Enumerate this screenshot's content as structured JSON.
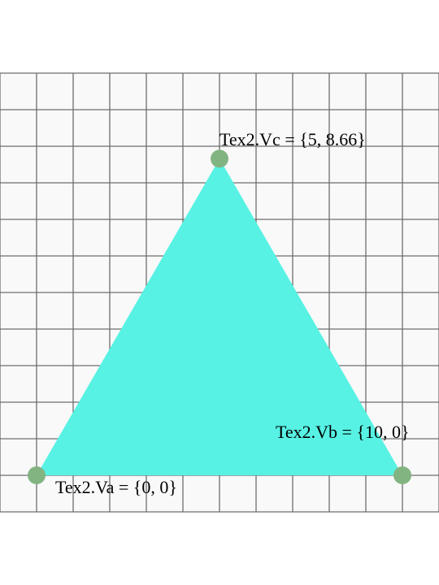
{
  "grid": {
    "background_color": "#f9f9f9",
    "line_color": "#6e6e6e"
  },
  "triangle": {
    "fill_color": "#57f2e4"
  },
  "vertex_marker_color": "#82b482",
  "vertices": {
    "a": {
      "name": "Tex2.Va",
      "x": 0,
      "y": 0,
      "label": "Tex2.Va = {0, 0}"
    },
    "b": {
      "name": "Tex2.Vb",
      "x": 10,
      "y": 0,
      "label": "Tex2.Vb = {10, 0}"
    },
    "c": {
      "name": "Tex2.Vc",
      "x": 5,
      "y": 8.66,
      "label": "Tex2.Vc = {5, 8.66}"
    }
  }
}
